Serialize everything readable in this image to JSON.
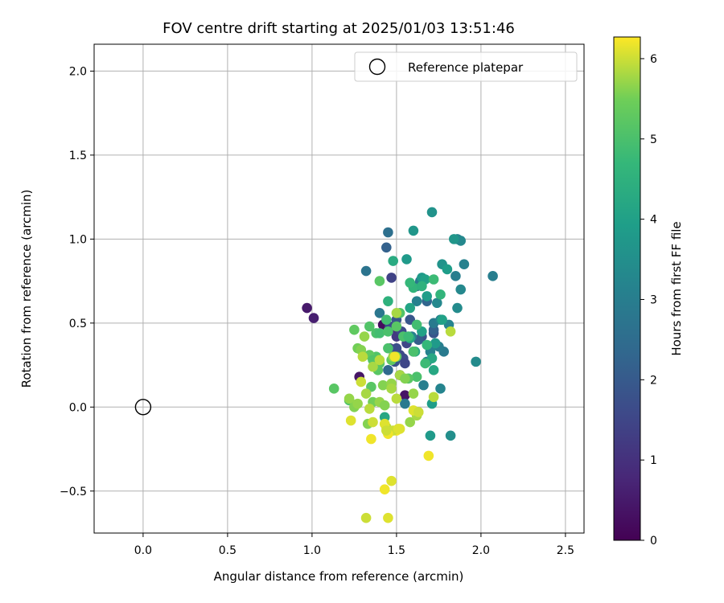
{
  "chart_data": {
    "type": "scatter",
    "title": "FOV centre drift starting at 2025/01/03 13:51:46",
    "xlabel": "Angular distance from reference (arcmin)",
    "ylabel": "Rotation from reference (arcmin)",
    "xlim": [
      -0.29,
      2.61
    ],
    "ylim": [
      -0.75,
      2.16
    ],
    "xticks": [
      0.0,
      0.5,
      1.0,
      1.5,
      2.0,
      2.5
    ],
    "xtick_labels": [
      "0.0",
      "0.5",
      "1.0",
      "1.5",
      "2.0",
      "2.5"
    ],
    "yticks": [
      -0.5,
      0.0,
      0.5,
      1.0,
      1.5,
      2.0
    ],
    "ytick_labels": [
      "−0.5",
      "0.0",
      "0.5",
      "1.0",
      "1.5",
      "2.0"
    ],
    "grid": true,
    "legend": {
      "placement": "top-right",
      "entries": [
        {
          "label": "Reference platepar",
          "marker": "open-circle"
        }
      ]
    },
    "reference_point": {
      "x": 0.0,
      "y": 0.0,
      "label": "Reference platepar"
    },
    "colorbar": {
      "label": "Hours from first FF file",
      "range": [
        0,
        6.27
      ],
      "ticks": [
        0,
        1,
        2,
        3,
        4,
        5,
        6
      ],
      "tick_labels": [
        "0",
        "1",
        "2",
        "3",
        "4",
        "5",
        "6"
      ],
      "colormap": "viridis"
    },
    "series": [
      {
        "x": [
          0.97,
          1.01,
          1.28,
          1.42,
          1.48,
          1.52,
          1.55,
          1.46,
          1.5
        ],
        "y": [
          0.59,
          0.53,
          0.18,
          0.49,
          0.47,
          0.19,
          0.07,
          0.35,
          0.42
        ],
        "c": [
          0.5,
          0.6,
          0.4,
          0.2,
          0.8,
          0.6,
          0.4,
          1.0,
          1.2
        ]
      },
      {
        "x": [
          1.47,
          1.53,
          1.56,
          1.62,
          1.65,
          1.72,
          1.5,
          1.44,
          1.46,
          1.58,
          1.63,
          1.54,
          1.68,
          1.55,
          1.49,
          1.6,
          1.52,
          1.45,
          1.72,
          1.5
        ],
        "y": [
          0.77,
          0.45,
          0.38,
          0.72,
          0.42,
          0.44,
          0.35,
          0.95,
          0.48,
          0.52,
          0.4,
          0.29,
          0.63,
          0.26,
          0.27,
          0.33,
          0.31,
          0.22,
          0.46,
          0.52
        ],
        "c": [
          1.4,
          1.6,
          1.5,
          2.0,
          1.8,
          1.9,
          1.7,
          2.2,
          1.6,
          1.9,
          2.1,
          1.7,
          2.3,
          1.5,
          1.8,
          2.0,
          1.6,
          2.4,
          2.2,
          1.9
        ]
      },
      {
        "x": [
          1.45,
          1.32,
          1.4,
          1.59,
          1.78,
          1.85,
          1.9,
          1.86,
          2.07,
          1.88,
          1.72,
          1.64,
          1.75,
          1.62,
          1.76,
          1.68,
          1.74,
          1.86,
          1.81,
          1.7,
          1.66,
          1.55,
          1.97,
          1.76,
          1.82,
          1.88
        ],
        "y": [
          1.04,
          0.81,
          0.56,
          0.42,
          0.33,
          0.78,
          0.85,
          1.0,
          0.78,
          0.7,
          0.5,
          0.75,
          0.36,
          0.63,
          0.52,
          0.27,
          0.62,
          0.59,
          0.49,
          0.33,
          0.13,
          0.02,
          0.27,
          0.11,
          -0.17,
          0.99
        ],
        "c": [
          2.6,
          2.7,
          2.8,
          3.0,
          2.9,
          3.0,
          3.1,
          3.2,
          3.0,
          3.3,
          2.9,
          2.8,
          3.0,
          3.1,
          3.2,
          3.0,
          3.3,
          3.4,
          3.2,
          3.1,
          3.0,
          2.9,
          3.4,
          3.2,
          3.5,
          3.3
        ]
      },
      {
        "x": [
          1.71,
          1.6,
          1.56,
          1.77,
          1.8,
          1.84,
          1.65,
          1.67,
          1.58,
          1.68,
          1.73,
          1.77,
          1.71,
          1.58,
          1.65,
          1.61,
          1.71,
          1.72,
          1.7,
          1.48,
          1.43
        ],
        "y": [
          1.16,
          1.05,
          0.88,
          0.85,
          0.82,
          1.0,
          0.77,
          0.76,
          0.59,
          0.66,
          0.38,
          0.52,
          0.29,
          0.41,
          0.45,
          0.33,
          0.02,
          0.22,
          -0.17,
          0.87,
          -0.06
        ],
        "c": [
          3.6,
          3.7,
          3.8,
          3.6,
          3.9,
          3.7,
          3.8,
          4.0,
          4.1,
          3.9,
          3.8,
          4.0,
          4.2,
          4.1,
          4.0,
          4.3,
          3.9,
          4.2,
          3.8,
          4.3,
          4.2
        ]
      },
      {
        "x": [
          1.45,
          1.6,
          1.58,
          1.65,
          1.72,
          1.76,
          1.44,
          1.38,
          1.34,
          1.4,
          1.45,
          1.5,
          1.54,
          1.57,
          1.62,
          1.68,
          1.67,
          1.62,
          1.38,
          1.4,
          1.34,
          1.36,
          1.39,
          1.45,
          1.5,
          1.52,
          1.57,
          1.6,
          1.25,
          1.22,
          1.13,
          1.35,
          1.47,
          1.4
        ],
        "y": [
          0.63,
          0.71,
          0.74,
          0.72,
          0.76,
          0.67,
          0.52,
          0.44,
          0.48,
          0.44,
          0.45,
          0.48,
          0.42,
          0.42,
          0.49,
          0.37,
          0.26,
          0.18,
          0.3,
          0.26,
          0.31,
          0.28,
          0.22,
          0.35,
          0.3,
          0.56,
          0.17,
          0.33,
          0.46,
          0.04,
          0.11,
          0.12,
          0.28,
          0.75
        ],
        "c": [
          4.5,
          4.6,
          4.7,
          4.5,
          4.8,
          4.6,
          4.9,
          5.0,
          5.1,
          4.9,
          5.0,
          5.2,
          5.0,
          4.8,
          4.9,
          4.7,
          4.8,
          5.0,
          5.1,
          5.2,
          5.3,
          5.1,
          5.2,
          5.0,
          5.3,
          5.1,
          5.2,
          5.0,
          5.3,
          5.1,
          5.2,
          5.2,
          5.3,
          5.2
        ]
      },
      {
        "x": [
          1.27,
          1.29,
          1.31,
          1.36,
          1.42,
          1.47,
          1.52,
          1.55,
          1.6,
          1.63,
          1.25,
          1.27,
          1.32,
          1.34,
          1.4,
          1.47,
          1.5,
          1.43,
          1.22,
          1.3,
          1.36,
          1.4,
          1.48,
          1.5,
          1.33,
          1.44,
          1.58,
          1.62,
          1.72,
          1.82
        ],
        "y": [
          0.35,
          0.34,
          0.42,
          0.03,
          0.13,
          0.14,
          0.19,
          0.17,
          0.08,
          -0.03,
          0.0,
          0.02,
          0.08,
          -0.01,
          0.03,
          0.11,
          0.05,
          0.01,
          0.05,
          0.3,
          0.24,
          0.28,
          0.3,
          0.56,
          -0.1,
          -0.12,
          -0.09,
          -0.05,
          0.06,
          0.45
        ],
        "c": [
          5.5,
          5.6,
          5.7,
          5.5,
          5.6,
          5.7,
          5.8,
          5.6,
          5.7,
          5.8,
          5.6,
          5.7,
          5.8,
          5.9,
          5.7,
          5.8,
          5.9,
          5.6,
          5.7,
          5.9,
          5.8,
          5.9,
          5.7,
          5.8,
          5.6,
          5.9,
          5.7,
          5.8,
          5.9,
          5.9
        ]
      },
      {
        "x": [
          1.29,
          1.23,
          1.36,
          1.43,
          1.5,
          1.48,
          1.51,
          1.45,
          1.6,
          1.63,
          1.69,
          1.47,
          1.43,
          1.32,
          1.45,
          1.35,
          1.44,
          1.49,
          1.52
        ],
        "y": [
          0.15,
          -0.08,
          -0.09,
          -0.1,
          -0.14,
          -0.14,
          -0.13,
          -0.16,
          -0.02,
          -0.03,
          -0.29,
          -0.44,
          -0.49,
          -0.66,
          -0.66,
          -0.19,
          -0.14,
          0.3,
          -0.13
        ],
        "c": [
          6.0,
          6.1,
          6.0,
          6.1,
          6.2,
          6.0,
          6.1,
          6.2,
          6.1,
          6.0,
          6.2,
          6.1,
          6.2,
          6.0,
          6.1,
          6.2,
          6.0,
          6.2,
          6.1
        ]
      }
    ]
  }
}
